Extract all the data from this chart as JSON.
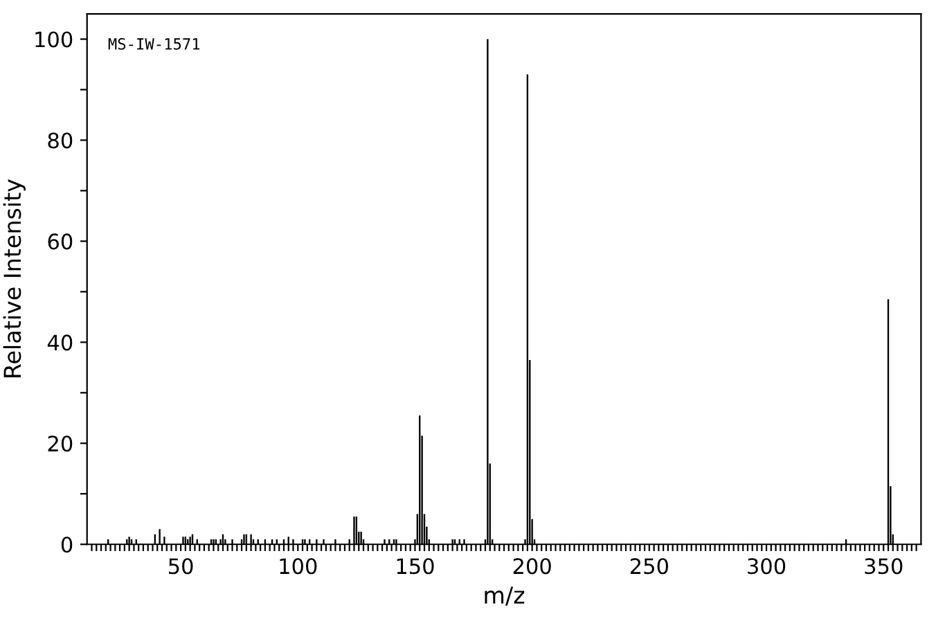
{
  "chart_data": {
    "type": "bar",
    "xlabel": "m/z",
    "ylabel": "Relative Intensity",
    "annotations": [
      "MS-IW-1571"
    ],
    "x": [
      19,
      27,
      28,
      29,
      31,
      39,
      41,
      43,
      51,
      52,
      53,
      54,
      55,
      57,
      63,
      64,
      65,
      67,
      68,
      69,
      72,
      76,
      77,
      78,
      80,
      81,
      83,
      86,
      89,
      91,
      94,
      96,
      98,
      102,
      103,
      105,
      108,
      111,
      116,
      122,
      124,
      125,
      126,
      127,
      128,
      137,
      139,
      141,
      142,
      150,
      151,
      152,
      153,
      154,
      155,
      156,
      166,
      167,
      169,
      171,
      180,
      181,
      182,
      183,
      197,
      198,
      199,
      200,
      201,
      334,
      352,
      353,
      354
    ],
    "values": [
      1,
      1,
      1.5,
      1,
      1,
      2,
      3,
      1.5,
      1.5,
      1.5,
      1,
      1.5,
      2,
      1,
      1,
      1,
      1,
      1,
      2,
      1,
      1,
      1,
      2,
      2,
      2,
      1,
      1,
      1,
      1,
      1,
      1,
      1.5,
      1,
      1,
      1,
      1,
      1,
      1,
      1,
      1,
      5.5,
      5.5,
      2.5,
      2.5,
      1,
      1,
      1,
      1,
      1,
      1,
      6,
      25.5,
      21.5,
      6,
      3.5,
      1,
      1,
      1,
      1,
      1,
      1,
      100,
      16,
      1,
      1,
      93,
      36.5,
      5,
      1,
      1,
      48.5,
      11.5,
      2
    ],
    "color": "#000000",
    "xlim": [
      10,
      366
    ],
    "ylim": [
      0,
      105
    ],
    "xticks": [
      50,
      100,
      150,
      200,
      250,
      300,
      350,
      {
        "value": 12,
        "label": null
      },
      {
        "value": 14,
        "label": null
      },
      {
        "value": 16,
        "label": null
      },
      {
        "value": 18,
        "label": null
      },
      {
        "value": 20,
        "label": null
      },
      {
        "value": 22,
        "label": null
      },
      {
        "value": 24,
        "label": null
      },
      {
        "value": 26,
        "label": null
      },
      {
        "value": 28,
        "label": null
      },
      {
        "value": 30,
        "label": null
      },
      {
        "value": 32,
        "label": null
      },
      {
        "value": 34,
        "label": null
      },
      {
        "value": 36,
        "label": null
      },
      {
        "value": 38,
        "label": null
      },
      {
        "value": 40,
        "label": null
      },
      {
        "value": 42,
        "label": null
      },
      {
        "value": 44,
        "label": null
      },
      {
        "value": 46,
        "label": null
      },
      {
        "value": 48,
        "label": null
      },
      {
        "value": 52,
        "label": null
      },
      {
        "value": 54,
        "label": null
      },
      {
        "value": 56,
        "label": null
      },
      {
        "value": 58,
        "label": null
      },
      {
        "value": 60,
        "label": null
      },
      {
        "value": 62,
        "label": null
      },
      {
        "value": 64,
        "label": null
      },
      {
        "value": 66,
        "label": null
      },
      {
        "value": 68,
        "label": null
      },
      {
        "value": 70,
        "label": null
      },
      {
        "value": 72,
        "label": null
      },
      {
        "value": 74,
        "label": null
      },
      {
        "value": 76,
        "label": null
      },
      {
        "value": 78,
        "label": null
      },
      {
        "value": 80,
        "label": null
      },
      {
        "value": 82,
        "label": null
      },
      {
        "value": 84,
        "label": null
      },
      {
        "value": 86,
        "label": null
      },
      {
        "value": 88,
        "label": null
      },
      {
        "value": 90,
        "label": null
      },
      {
        "value": 92,
        "label": null
      },
      {
        "value": 94,
        "label": null
      },
      {
        "value": 96,
        "label": null
      },
      {
        "value": 98,
        "label": null
      },
      {
        "value": 102,
        "label": null
      },
      {
        "value": 104,
        "label": null
      },
      {
        "value": 106,
        "label": null
      },
      {
        "value": 108,
        "label": null
      },
      {
        "value": 110,
        "label": null
      },
      {
        "value": 112,
        "label": null
      },
      {
        "value": 114,
        "label": null
      },
      {
        "value": 116,
        "label": null
      },
      {
        "value": 118,
        "label": null
      },
      {
        "value": 120,
        "label": null
      },
      {
        "value": 122,
        "label": null
      },
      {
        "value": 124,
        "label": null
      },
      {
        "value": 126,
        "label": null
      },
      {
        "value": 128,
        "label": null
      },
      {
        "value": 130,
        "label": null
      },
      {
        "value": 132,
        "label": null
      },
      {
        "value": 134,
        "label": null
      },
      {
        "value": 136,
        "label": null
      },
      {
        "value": 138,
        "label": null
      },
      {
        "value": 140,
        "label": null
      },
      {
        "value": 142,
        "label": null
      },
      {
        "value": 144,
        "label": null
      },
      {
        "value": 146,
        "label": null
      },
      {
        "value": 148,
        "label": null
      },
      {
        "value": 152,
        "label": null
      },
      {
        "value": 154,
        "label": null
      },
      {
        "value": 156,
        "label": null
      },
      {
        "value": 158,
        "label": null
      },
      {
        "value": 160,
        "label": null
      },
      {
        "value": 162,
        "label": null
      },
      {
        "value": 164,
        "label": null
      },
      {
        "value": 166,
        "label": null
      },
      {
        "value": 168,
        "label": null
      },
      {
        "value": 170,
        "label": null
      },
      {
        "value": 172,
        "label": null
      },
      {
        "value": 174,
        "label": null
      },
      {
        "value": 176,
        "label": null
      },
      {
        "value": 178,
        "label": null
      },
      {
        "value": 180,
        "label": null
      },
      {
        "value": 182,
        "label": null
      },
      {
        "value": 184,
        "label": null
      },
      {
        "value": 186,
        "label": null
      },
      {
        "value": 188,
        "label": null
      },
      {
        "value": 190,
        "label": null
      },
      {
        "value": 192,
        "label": null
      },
      {
        "value": 194,
        "label": null
      },
      {
        "value": 196,
        "label": null
      },
      {
        "value": 198,
        "label": null
      },
      {
        "value": 202,
        "label": null
      },
      {
        "value": 204,
        "label": null
      },
      {
        "value": 206,
        "label": null
      },
      {
        "value": 208,
        "label": null
      },
      {
        "value": 210,
        "label": null
      },
      {
        "value": 212,
        "label": null
      },
      {
        "value": 214,
        "label": null
      },
      {
        "value": 216,
        "label": null
      },
      {
        "value": 218,
        "label": null
      },
      {
        "value": 220,
        "label": null
      },
      {
        "value": 222,
        "label": null
      },
      {
        "value": 224,
        "label": null
      },
      {
        "value": 226,
        "label": null
      },
      {
        "value": 228,
        "label": null
      },
      {
        "value": 230,
        "label": null
      },
      {
        "value": 232,
        "label": null
      },
      {
        "value": 234,
        "label": null
      },
      {
        "value": 236,
        "label": null
      },
      {
        "value": 238,
        "label": null
      },
      {
        "value": 240,
        "label": null
      },
      {
        "value": 242,
        "label": null
      },
      {
        "value": 244,
        "label": null
      },
      {
        "value": 246,
        "label": null
      },
      {
        "value": 248,
        "label": null
      },
      {
        "value": 252,
        "label": null
      },
      {
        "value": 254,
        "label": null
      },
      {
        "value": 256,
        "label": null
      },
      {
        "value": 258,
        "label": null
      },
      {
        "value": 260,
        "label": null
      },
      {
        "value": 262,
        "label": null
      },
      {
        "value": 264,
        "label": null
      },
      {
        "value": 266,
        "label": null
      },
      {
        "value": 268,
        "label": null
      },
      {
        "value": 270,
        "label": null
      },
      {
        "value": 272,
        "label": null
      },
      {
        "value": 274,
        "label": null
      },
      {
        "value": 276,
        "label": null
      },
      {
        "value": 278,
        "label": null
      },
      {
        "value": 280,
        "label": null
      },
      {
        "value": 282,
        "label": null
      },
      {
        "value": 284,
        "label": null
      },
      {
        "value": 286,
        "label": null
      },
      {
        "value": 288,
        "label": null
      },
      {
        "value": 290,
        "label": null
      },
      {
        "value": 292,
        "label": null
      },
      {
        "value": 294,
        "label": null
      },
      {
        "value": 296,
        "label": null
      },
      {
        "value": 298,
        "label": null
      },
      {
        "value": 302,
        "label": null
      },
      {
        "value": 304,
        "label": null
      },
      {
        "value": 306,
        "label": null
      },
      {
        "value": 308,
        "label": null
      },
      {
        "value": 310,
        "label": null
      },
      {
        "value": 312,
        "label": null
      },
      {
        "value": 314,
        "label": null
      },
      {
        "value": 316,
        "label": null
      },
      {
        "value": 318,
        "label": null
      },
      {
        "value": 320,
        "label": null
      },
      {
        "value": 322,
        "label": null
      },
      {
        "value": 324,
        "label": null
      },
      {
        "value": 326,
        "label": null
      },
      {
        "value": 328,
        "label": null
      },
      {
        "value": 330,
        "label": null
      },
      {
        "value": 332,
        "label": null
      },
      {
        "value": 334,
        "label": null
      },
      {
        "value": 336,
        "label": null
      },
      {
        "value": 338,
        "label": null
      },
      {
        "value": 340,
        "label": null
      },
      {
        "value": 342,
        "label": null
      },
      {
        "value": 344,
        "label": null
      },
      {
        "value": 346,
        "label": null
      },
      {
        "value": 348,
        "label": null
      },
      {
        "value": 352,
        "label": null
      },
      {
        "value": 354,
        "label": null
      },
      {
        "value": 356,
        "label": null
      },
      {
        "value": 358,
        "label": null
      },
      {
        "value": 360,
        "label": null
      },
      {
        "value": 362,
        "label": null
      },
      {
        "value": 364,
        "label": null
      }
    ],
    "yticks": [
      0,
      20,
      40,
      60,
      80,
      100,
      {
        "value": 10,
        "label": null
      },
      {
        "value": 30,
        "label": null
      },
      {
        "value": 50,
        "label": null
      },
      {
        "value": 70,
        "label": null
      },
      {
        "value": 90,
        "label": null
      }
    ],
    "grid": false,
    "legend": false
  }
}
